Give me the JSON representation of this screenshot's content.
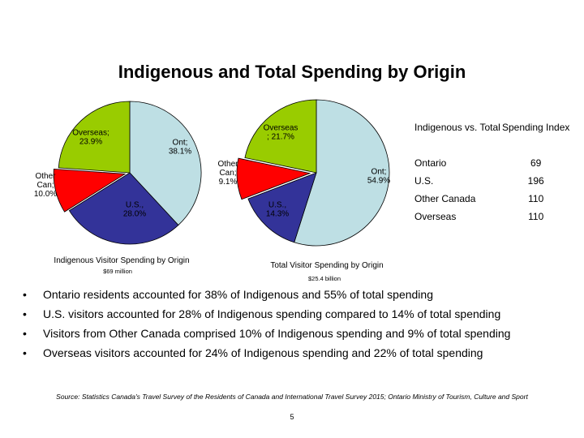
{
  "slide": {
    "title": "Indigenous and Total Spending by Origin",
    "page_number": "5",
    "source": "Source: Statistics Canada's Travel Survey of the Residents of Canada and International Travel Survey 2015; Ontario Ministry of Tourism, Culture and Sport"
  },
  "colors": {
    "ontario": "#BEDFE4",
    "us": "#333399",
    "other_canada": "#FF0000",
    "overseas": "#99CC00",
    "edge": "#000000"
  },
  "chart_data": [
    {
      "type": "pie",
      "caption": "Indigenous Visitor Spending by Origin",
      "subcaption": "$69 million",
      "categories": [
        "Ont",
        "U.S.",
        "Other Can",
        "Overseas"
      ],
      "values": [
        38.1,
        28.0,
        10.0,
        23.9
      ],
      "labels": [
        {
          "lines": [
            "Ont;",
            "38.1%"
          ]
        },
        {
          "lines": [
            "U.S.,",
            "28.0%"
          ]
        },
        {
          "lines": [
            "Other",
            "Can;",
            "10.0%"
          ]
        },
        {
          "lines": [
            "Overseas;",
            "23.9%"
          ]
        }
      ]
    },
    {
      "type": "pie",
      "caption": "Total Visitor Spending by Origin",
      "subcaption": "$25.4 billion",
      "categories": [
        "Ont",
        "U.S.",
        "Other Can",
        "Overseas"
      ],
      "values": [
        54.9,
        14.3,
        9.1,
        21.7
      ],
      "labels": [
        {
          "lines": [
            "Ont;",
            "54.9%"
          ]
        },
        {
          "lines": [
            "U.S.,",
            "14.3%"
          ]
        },
        {
          "lines": [
            "Other",
            "Can;",
            "9.1%"
          ]
        },
        {
          "lines": [
            "Overseas",
            "; 21.7%"
          ]
        }
      ]
    }
  ],
  "index_table": {
    "headers": [
      "Indigenous vs. Total",
      "Spending Index"
    ],
    "rows": [
      {
        "label": "Ontario",
        "value": "69"
      },
      {
        "label": "U.S.",
        "value": "196"
      },
      {
        "label": "Other Canada",
        "value": "110"
      },
      {
        "label": "Overseas",
        "value": "110"
      }
    ]
  },
  "bullets": [
    "Ontario residents accounted for 38% of Indigenous and 55% of total spending",
    "U.S. visitors accounted for 28% of Indigenous spending compared to 14% of total spending",
    "Visitors from Other Canada comprised 10% of Indigenous spending and 9% of total spending",
    "Overseas visitors accounted for 24% of Indigenous spending and 22% of total spending"
  ]
}
